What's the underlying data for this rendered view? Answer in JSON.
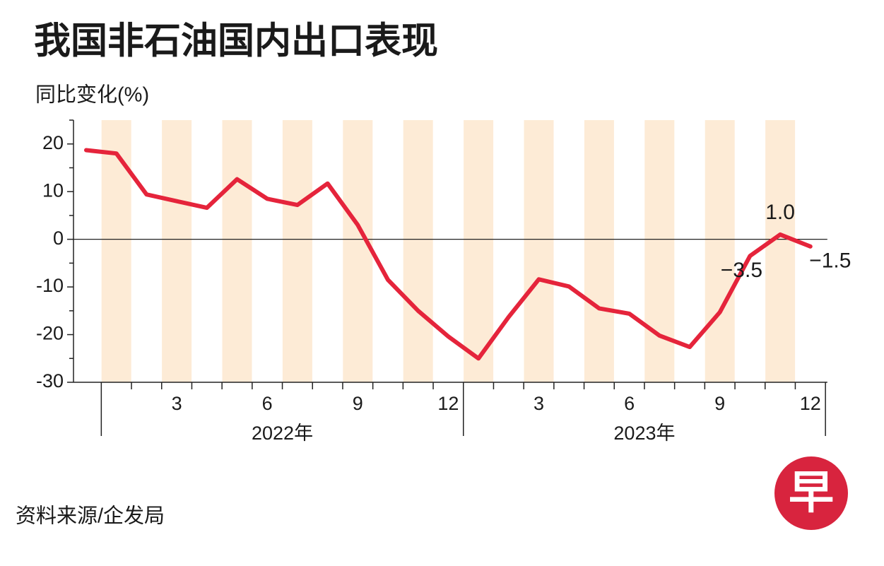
{
  "chart_data": {
    "type": "line",
    "title": "我国非石油国内出口表现",
    "y_axis_label": "同比变化(%)",
    "source": "资料来源/企发局",
    "logo": "早",
    "categories": [
      null,
      null,
      null,
      "3",
      null,
      null,
      "6",
      null,
      null,
      "9",
      null,
      null,
      "12",
      null,
      null,
      "3",
      null,
      null,
      "6",
      null,
      null,
      "9",
      null,
      null,
      "12"
    ],
    "groups": [
      "2022年",
      "2023年"
    ],
    "series": [
      {
        "name": "非石油国内出口",
        "color": "#e5243b",
        "values": [
          18.7,
          18.0,
          9.4,
          8.0,
          6.6,
          12.6,
          8.5,
          7.2,
          11.7,
          3.0,
          -8.5,
          -15.0,
          -20.4,
          -25.0,
          -16.3,
          -8.4,
          -9.9,
          -14.5,
          -15.6,
          -20.2,
          -22.6,
          -15.3,
          -3.5,
          1.0,
          -1.5
        ],
        "value_labels": [
          null,
          null,
          null,
          null,
          null,
          null,
          null,
          null,
          null,
          null,
          null,
          null,
          null,
          null,
          null,
          null,
          null,
          null,
          null,
          null,
          null,
          null,
          "−3.5",
          "1.0",
          "−1.5"
        ]
      }
    ],
    "ylim": [
      -30,
      25
    ],
    "yticks": [
      -30,
      -20,
      -10,
      0,
      10,
      20
    ],
    "yminorticks": [
      -25,
      -15,
      -5,
      5,
      15,
      25
    ],
    "stripe_color": "#fdebd6"
  }
}
